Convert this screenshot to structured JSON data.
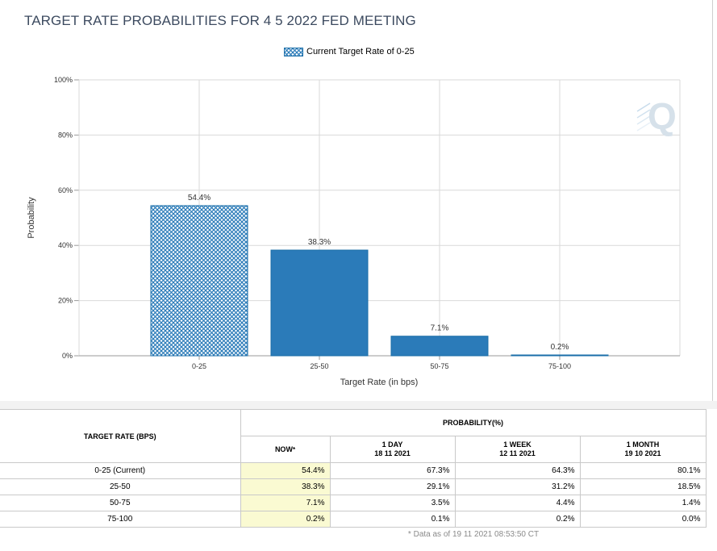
{
  "chart_data": {
    "type": "bar",
    "title": "TARGET RATE PROBABILITIES FOR 4 5 2022 FED MEETING",
    "legend": {
      "label": "Current Target Rate of 0-25",
      "placement": "top-center"
    },
    "categories": [
      "0-25",
      "25-50",
      "50-75",
      "75-100"
    ],
    "values": [
      54.4,
      38.3,
      7.1,
      0.2
    ],
    "value_labels": [
      "54.4%",
      "38.3%",
      "7.1%",
      "0.2%"
    ],
    "highlighted_category": "0-25",
    "xlabel": "Target Rate (in bps)",
    "ylabel": "Probability",
    "ylim": [
      0,
      100
    ],
    "yticks": [
      0,
      20,
      40,
      60,
      80,
      100
    ],
    "ytick_labels": [
      "0%",
      "20%",
      "40%",
      "60%",
      "80%",
      "100%"
    ],
    "grid": true,
    "colors": {
      "bar": "#2b7bb9",
      "bar_edge": "#1a6ea8",
      "grid": "#d9d9d9"
    }
  },
  "watermark": "Q",
  "table": {
    "header_rate": "TARGET RATE (BPS)",
    "header_probability": "PROBABILITY(%)",
    "col_now": "NOW",
    "col_now_marker": "*",
    "col_1day": "1 DAY",
    "col_1day_date": "18 11 2021",
    "col_1week": "1 WEEK",
    "col_1week_date": "12 11 2021",
    "col_1month": "1 MONTH",
    "col_1month_date": "19 10 2021",
    "rows": [
      {
        "rate": "0-25 (Current)",
        "now": "54.4%",
        "day": "67.3%",
        "week": "64.3%",
        "month": "80.1%"
      },
      {
        "rate": "25-50",
        "now": "38.3%",
        "day": "29.1%",
        "week": "31.2%",
        "month": "18.5%"
      },
      {
        "rate": "50-75",
        "now": "7.1%",
        "day": "3.5%",
        "week": "4.4%",
        "month": "1.4%"
      },
      {
        "rate": "75-100",
        "now": "0.2%",
        "day": "0.1%",
        "week": "0.2%",
        "month": "0.0%"
      }
    ],
    "footnote": "* Data as of 19 11 2021 08:53:50 CT"
  }
}
